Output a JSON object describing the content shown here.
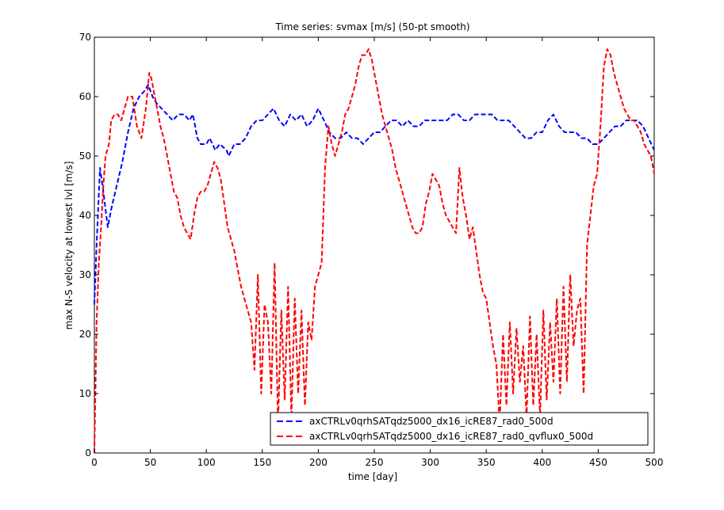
{
  "chart_data": {
    "type": "line",
    "title": "Time series: svmax [m/s] (50-pt smooth)",
    "xlabel": "time [day]",
    "ylabel": "max N-S velocity at lowest lvl [m/s]",
    "xlim": [
      0,
      500
    ],
    "ylim": [
      0,
      70
    ],
    "xticks": [
      "0",
      "50",
      "100",
      "150",
      "200",
      "250",
      "300",
      "350",
      "400",
      "450",
      "500"
    ],
    "yticks": [
      "0",
      "10",
      "20",
      "30",
      "40",
      "50",
      "60",
      "70"
    ],
    "grid": false,
    "legend_position": "bottom-right",
    "series": [
      {
        "name": "axCTRLv0qrhSATqdz5000_dx16_icRE87_rad0_500d",
        "color": "#0000ff",
        "style": "dashed",
        "x": [
          0,
          2,
          5,
          8,
          12,
          15,
          20,
          25,
          30,
          35,
          40,
          45,
          48,
          52,
          55,
          60,
          65,
          70,
          75,
          80,
          85,
          88,
          92,
          95,
          100,
          103,
          108,
          112,
          118,
          120,
          125,
          130,
          135,
          140,
          145,
          150,
          155,
          160,
          165,
          170,
          175,
          180,
          185,
          190,
          195,
          200,
          205,
          210,
          215,
          220,
          225,
          230,
          235,
          240,
          245,
          250,
          255,
          260,
          265,
          270,
          275,
          280,
          285,
          290,
          295,
          300,
          305,
          310,
          315,
          320,
          325,
          330,
          335,
          340,
          345,
          350,
          355,
          360,
          365,
          370,
          375,
          380,
          385,
          390,
          395,
          400,
          405,
          410,
          415,
          420,
          425,
          430,
          435,
          440,
          445,
          450,
          455,
          460,
          465,
          470,
          475,
          480,
          485,
          490,
          495,
          500
        ],
        "y": [
          25,
          35,
          48,
          44,
          38,
          41,
          45,
          49,
          54,
          58,
          60,
          61,
          62,
          60,
          59,
          58,
          57,
          56,
          57,
          57,
          56,
          57,
          53,
          52,
          52,
          53,
          51,
          52,
          51,
          50,
          52,
          52,
          53,
          55,
          56,
          56,
          57,
          58,
          56,
          55,
          57,
          56,
          57,
          55,
          56,
          58,
          56,
          54,
          53,
          53,
          54,
          53,
          53,
          52,
          53,
          54,
          54,
          55,
          56,
          56,
          55,
          56,
          55,
          55,
          56,
          56,
          56,
          56,
          56,
          57,
          57,
          56,
          56,
          57,
          57,
          57,
          57,
          56,
          56,
          56,
          55,
          54,
          53,
          53,
          54,
          54,
          56,
          57,
          55,
          54,
          54,
          54,
          53,
          53,
          52,
          52,
          53,
          54,
          55,
          55,
          56,
          56,
          56,
          55,
          53,
          51
        ]
      },
      {
        "name": "axCTRLv0qrhSATqdz5000_dx16_icRE87_rad0_qvflux0_500d",
        "color": "#ff0000",
        "style": "dashed",
        "x": [
          0,
          2,
          4,
          6,
          8,
          10,
          13,
          15,
          18,
          21,
          24,
          27,
          30,
          34,
          38,
          42,
          46,
          49,
          51,
          53,
          56,
          59,
          62,
          65,
          68,
          71,
          74,
          77,
          80,
          83,
          86,
          89,
          92,
          95,
          98,
          101,
          104,
          107,
          110,
          113,
          116,
          119,
          122,
          125,
          128,
          131,
          134,
          137,
          140,
          143,
          146,
          149,
          152,
          155,
          158,
          161,
          164,
          167,
          170,
          173,
          176,
          179,
          182,
          185,
          188,
          191,
          194,
          197,
          200,
          203,
          206,
          209,
          212,
          215,
          218,
          221,
          224,
          227,
          230,
          233,
          236,
          239,
          242,
          245,
          248,
          251,
          254,
          257,
          260,
          263,
          266,
          269,
          272,
          275,
          278,
          281,
          284,
          287,
          290,
          293,
          296,
          299,
          302,
          305,
          308,
          311,
          314,
          317,
          320,
          323,
          326,
          329,
          332,
          335,
          338,
          341,
          344,
          347,
          350,
          353,
          356,
          359,
          362,
          365,
          368,
          371,
          374,
          377,
          380,
          383,
          386,
          389,
          392,
          395,
          398,
          401,
          404,
          407,
          410,
          413,
          416,
          419,
          422,
          425,
          428,
          431,
          434,
          437,
          440,
          443,
          446,
          449,
          452,
          455,
          458,
          461,
          464,
          467,
          470,
          473,
          476,
          479,
          482,
          485,
          488,
          491,
          494,
          497,
          500
        ],
        "y": [
          0,
          22,
          32,
          38,
          45,
          50,
          52,
          56,
          57,
          57,
          56,
          58,
          60,
          60,
          55,
          53,
          58,
          64,
          63,
          61,
          58,
          55,
          53,
          50,
          47,
          44,
          43,
          40,
          38,
          37,
          36,
          40,
          43,
          44,
          44,
          45,
          47,
          49,
          48,
          46,
          42,
          38,
          36,
          34,
          31,
          28,
          26,
          24,
          22,
          14,
          30,
          10,
          25,
          22,
          10,
          32,
          5,
          24,
          9,
          28,
          6,
          26,
          10,
          24,
          8,
          22,
          19,
          28,
          30,
          32,
          48,
          55,
          52,
          50,
          52,
          54,
          57,
          58,
          60,
          62,
          65,
          67,
          67,
          68,
          66,
          63,
          60,
          57,
          55,
          53,
          51,
          48,
          46,
          44,
          42,
          40,
          38,
          37,
          37,
          38,
          42,
          44,
          47,
          46,
          45,
          42,
          40,
          39,
          38,
          37,
          48,
          43,
          40,
          36,
          38,
          34,
          30,
          27,
          26,
          22,
          18,
          15,
          5,
          20,
          8,
          22,
          10,
          21,
          12,
          18,
          6,
          23,
          8,
          20,
          6,
          24,
          9,
          22,
          12,
          26,
          10,
          28,
          12,
          30,
          18,
          24,
          26,
          10,
          35,
          40,
          45,
          47,
          55,
          65,
          68,
          67,
          64,
          62,
          60,
          58,
          57,
          56,
          56,
          55,
          54,
          52,
          51,
          50,
          47
        ]
      }
    ]
  }
}
